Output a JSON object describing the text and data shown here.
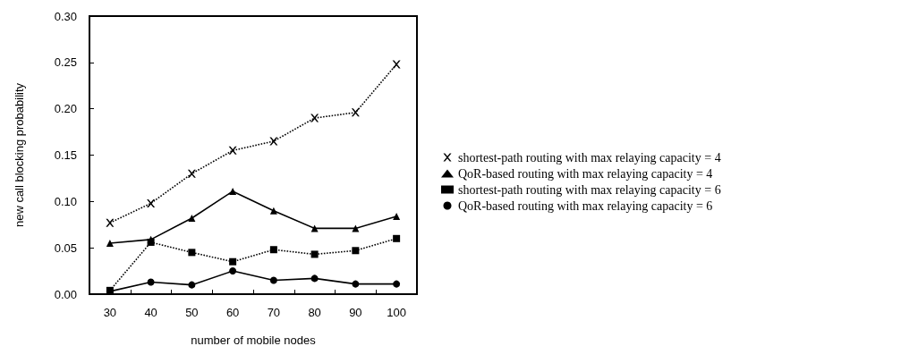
{
  "chart_data": {
    "type": "line",
    "xlabel": "number of mobile nodes",
    "ylabel": "new call blocking probability",
    "categories": [
      "30",
      "40",
      "50",
      "60",
      "70",
      "80",
      "90",
      "100"
    ],
    "series": [
      {
        "name": "shortest-path routing with max relaying capacity = 4",
        "color": "#000000",
        "marker": "cross",
        "line_style": "dotted",
        "values": [
          0.077,
          0.098,
          0.13,
          0.155,
          0.165,
          0.19,
          0.196,
          0.248
        ]
      },
      {
        "name": "QoR-based routing with max relaying capacity = 4",
        "color": "#000000",
        "marker": "triangle",
        "line_style": "solid",
        "values": [
          0.055,
          0.059,
          0.082,
          0.111,
          0.09,
          0.071,
          0.071,
          0.084
        ]
      },
      {
        "name": "shortest-path routing with max relaying capacity = 6",
        "color": "#000000",
        "marker": "square",
        "line_style": "dotted",
        "values": [
          0.004,
          0.056,
          0.045,
          0.035,
          0.048,
          0.043,
          0.047,
          0.06
        ]
      },
      {
        "name": "QoR-based routing with max relaying capacity = 6",
        "color": "#000000",
        "marker": "circle",
        "line_style": "solid",
        "values": [
          0.003,
          0.013,
          0.01,
          0.025,
          0.015,
          0.017,
          0.011,
          0.011
        ]
      }
    ],
    "ylim": [
      0,
      0.3
    ],
    "yticks": [
      {
        "value": 0,
        "label": "0.00"
      },
      {
        "value": 0.05,
        "label": "0.05"
      },
      {
        "value": 0.1,
        "label": "0.10"
      },
      {
        "value": 0.15,
        "label": "0.15"
      },
      {
        "value": 0.2,
        "label": "0.20"
      },
      {
        "value": 0.25,
        "label": "0.25"
      },
      {
        "value": 0.3,
        "label": "0.30"
      }
    ],
    "grid": false,
    "legend": "right"
  }
}
